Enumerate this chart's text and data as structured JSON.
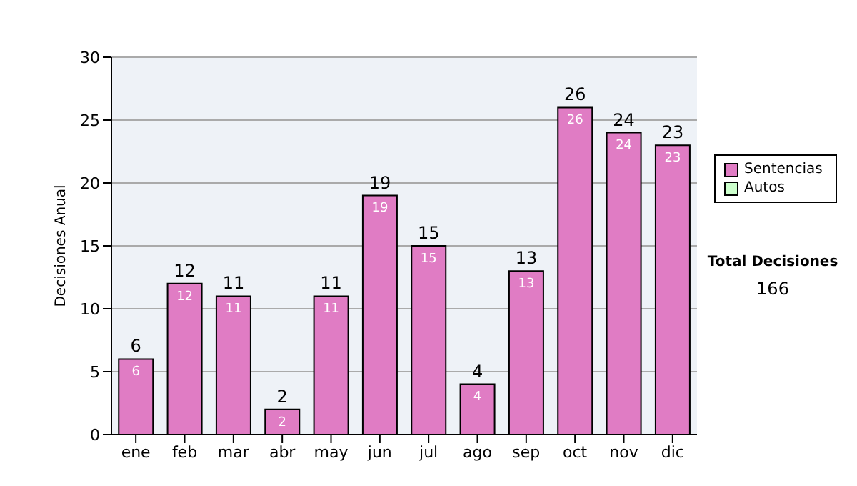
{
  "chart_data": {
    "type": "bar",
    "stacked": true,
    "ylabel": "Decisiones Anual",
    "categories": [
      "ene",
      "feb",
      "mar",
      "abr",
      "may",
      "jun",
      "jul",
      "ago",
      "sep",
      "oct",
      "nov",
      "dic"
    ],
    "series": [
      {
        "name": "Sentencias",
        "color": "#e07cc4",
        "values": [
          6,
          12,
          11,
          2,
          11,
          19,
          15,
          4,
          13,
          26,
          24,
          23
        ],
        "value_labels": [
          "6",
          "12",
          "11",
          "2",
          "11",
          "19",
          "15",
          "4",
          "13",
          "26",
          "24",
          "23"
        ]
      },
      {
        "name": "Autos",
        "color": "#ccffcc",
        "values": [
          0,
          0,
          0,
          0,
          0,
          0,
          0,
          0,
          0,
          0,
          0,
          0
        ]
      }
    ],
    "totals": [
      "6",
      "12",
      "11",
      "2",
      "11",
      "19",
      "15",
      "4",
      "13",
      "26",
      "24",
      "23"
    ],
    "ylim": [
      0,
      30
    ],
    "yticks": [
      0,
      5,
      10,
      15,
      20,
      25,
      30
    ],
    "grid": "y",
    "legend": "right",
    "annotations": [
      "Total Decisiones",
      "166"
    ]
  }
}
